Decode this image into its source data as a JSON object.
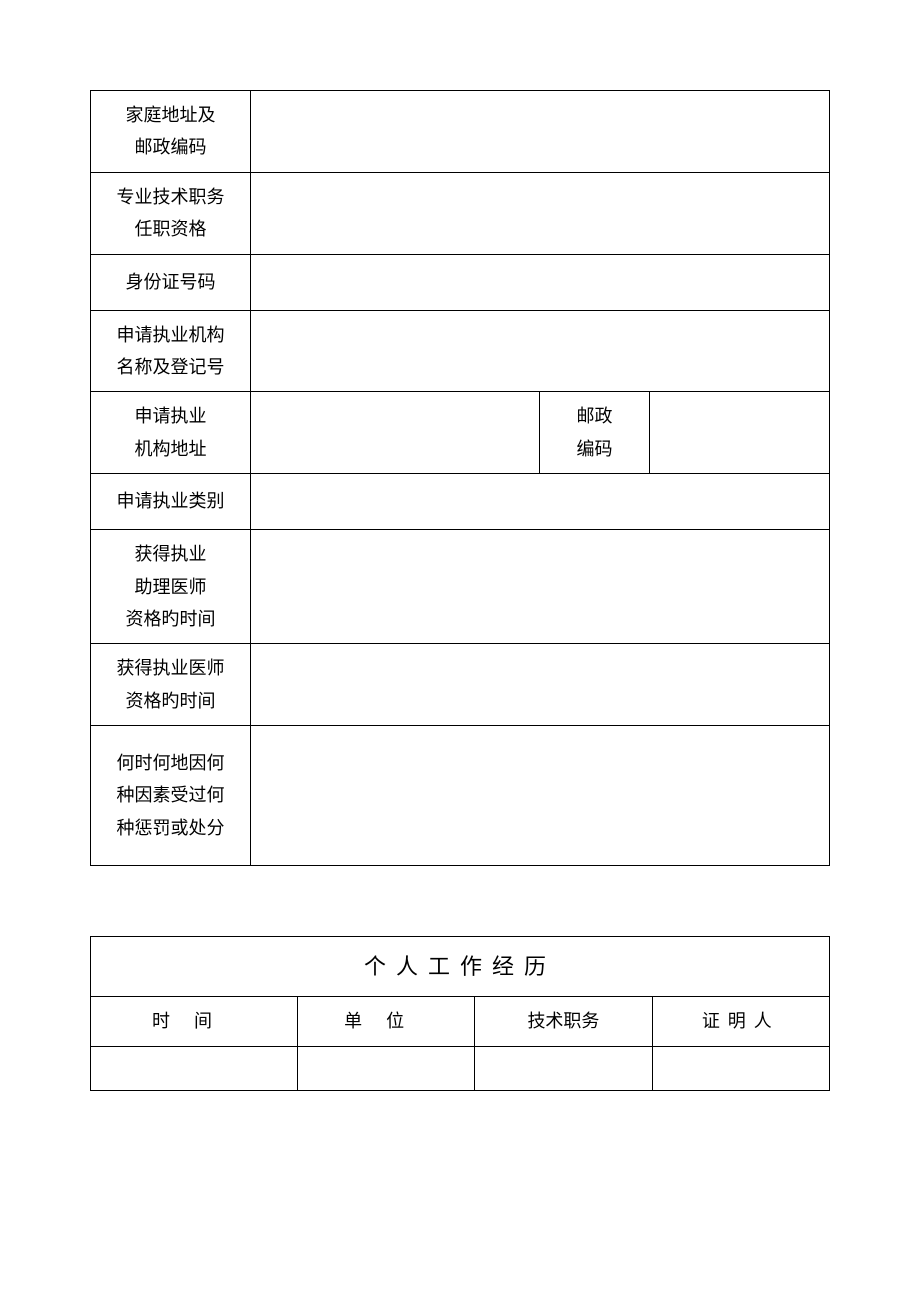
{
  "form": {
    "rows": {
      "home_address": {
        "label_line1": "家庭地址及",
        "label_line2": "邮政编码",
        "value": ""
      },
      "prof_qualification": {
        "label_line1": "专业技术职务",
        "label_line2": "任职资格",
        "value": ""
      },
      "id_number": {
        "label": "身份证号码",
        "value": ""
      },
      "practice_org": {
        "label_line1": "申请执业机构",
        "label_line2": "名称及登记号",
        "value": ""
      },
      "practice_address": {
        "label_line1": "申请执业",
        "label_line2": "机构地址",
        "value": "",
        "postal_label_line1": "邮政",
        "postal_label_line2": "编码",
        "postal_value": ""
      },
      "practice_category": {
        "label": "申请执业类别",
        "value": ""
      },
      "assistant_time": {
        "label_line1": "获得执业",
        "label_line2": "助理医师",
        "label_line3": "资格旳时间",
        "value": ""
      },
      "physician_time": {
        "label_line1": "获得执业医师",
        "label_line2": "资格旳时间",
        "value": ""
      },
      "penalty": {
        "label_line1": "何时何地因何",
        "label_line2": "种因素受过何",
        "label_line3": "种惩罚或处分",
        "value": ""
      }
    }
  },
  "history": {
    "title": "个人工作经历",
    "headers": {
      "time": "时间",
      "unit": "单位",
      "tech": "技术职务",
      "witness": "证明人"
    },
    "row1": {
      "time": "",
      "unit": "",
      "tech": "",
      "witness": ""
    }
  },
  "styles": {
    "background_color": "#ffffff",
    "border_color": "#000000",
    "text_color": "#000000",
    "label_fontsize": 18,
    "title_fontsize": 22
  }
}
